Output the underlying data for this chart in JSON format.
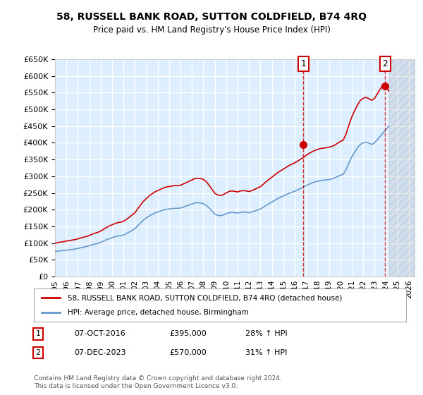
{
  "title": "58, RUSSELL BANK ROAD, SUTTON COLDFIELD, B74 4RQ",
  "subtitle": "Price paid vs. HM Land Registry's House Price Index (HPI)",
  "ylabel": "",
  "ylim": [
    0,
    650000
  ],
  "yticks": [
    0,
    50000,
    100000,
    150000,
    200000,
    250000,
    300000,
    350000,
    400000,
    450000,
    500000,
    550000,
    600000,
    650000
  ],
  "xlim_start": 1995.0,
  "xlim_end": 2026.5,
  "sale1_x": 2016.77,
  "sale1_y": 395000,
  "sale1_label": "1",
  "sale2_x": 2023.92,
  "sale2_y": 570000,
  "sale2_label": "2",
  "red_line_color": "#cc0000",
  "blue_line_color": "#6699cc",
  "background_color": "#ddeeff",
  "plot_bg_color": "#ddeeff",
  "grid_color": "#ffffff",
  "legend_label_red": "58, RUSSELL BANK ROAD, SUTTON COLDFIELD, B74 4RQ (detached house)",
  "legend_label_blue": "HPI: Average price, detached house, Birmingham",
  "annotation1_date": "07-OCT-2016",
  "annotation1_price": "£395,000",
  "annotation1_hpi": "28% ↑ HPI",
  "annotation2_date": "07-DEC-2023",
  "annotation2_price": "£570,000",
  "annotation2_hpi": "31% ↑ HPI",
  "footer": "Contains HM Land Registry data © Crown copyright and database right 2024.\nThis data is licensed under the Open Government Licence v3.0.",
  "hpi_years": [
    1995.0,
    1995.25,
    1995.5,
    1995.75,
    1996.0,
    1996.25,
    1996.5,
    1996.75,
    1997.0,
    1997.25,
    1997.5,
    1997.75,
    1998.0,
    1998.25,
    1998.5,
    1998.75,
    1999.0,
    1999.25,
    1999.5,
    1999.75,
    2000.0,
    2000.25,
    2000.5,
    2000.75,
    2001.0,
    2001.25,
    2001.5,
    2001.75,
    2002.0,
    2002.25,
    2002.5,
    2002.75,
    2003.0,
    2003.25,
    2003.5,
    2003.75,
    2004.0,
    2004.25,
    2004.5,
    2004.75,
    2005.0,
    2005.25,
    2005.5,
    2005.75,
    2006.0,
    2006.25,
    2006.5,
    2006.75,
    2007.0,
    2007.25,
    2007.5,
    2007.75,
    2008.0,
    2008.25,
    2008.5,
    2008.75,
    2009.0,
    2009.25,
    2009.5,
    2009.75,
    2010.0,
    2010.25,
    2010.5,
    2010.75,
    2011.0,
    2011.25,
    2011.5,
    2011.75,
    2012.0,
    2012.25,
    2012.5,
    2012.75,
    2013.0,
    2013.25,
    2013.5,
    2013.75,
    2014.0,
    2014.25,
    2014.5,
    2014.75,
    2015.0,
    2015.25,
    2015.5,
    2015.75,
    2016.0,
    2016.25,
    2016.5,
    2016.75,
    2017.0,
    2017.25,
    2017.5,
    2017.75,
    2018.0,
    2018.25,
    2018.5,
    2018.75,
    2019.0,
    2019.25,
    2019.5,
    2019.75,
    2020.0,
    2020.25,
    2020.5,
    2020.75,
    2021.0,
    2021.25,
    2021.5,
    2021.75,
    2022.0,
    2022.25,
    2022.5,
    2022.75,
    2023.0,
    2023.25,
    2023.5,
    2023.75,
    2024.0,
    2024.25
  ],
  "hpi_blue": [
    75000,
    76000,
    77000,
    78000,
    79000,
    80000,
    81000,
    82000,
    84000,
    86000,
    88000,
    90000,
    92000,
    95000,
    97000,
    99000,
    102000,
    106000,
    110000,
    113000,
    116000,
    119000,
    121000,
    122000,
    124000,
    128000,
    133000,
    138000,
    143000,
    152000,
    161000,
    169000,
    175000,
    181000,
    186000,
    190000,
    193000,
    196000,
    199000,
    201000,
    202000,
    203000,
    204000,
    204000,
    205000,
    208000,
    211000,
    214000,
    217000,
    220000,
    221000,
    220000,
    218000,
    213000,
    205000,
    196000,
    187000,
    183000,
    182000,
    184000,
    188000,
    191000,
    192000,
    191000,
    190000,
    192000,
    193000,
    192000,
    191000,
    193000,
    196000,
    199000,
    202000,
    207000,
    213000,
    218000,
    223000,
    228000,
    233000,
    237000,
    241000,
    245000,
    249000,
    252000,
    255000,
    259000,
    263000,
    267000,
    272000,
    276000,
    280000,
    283000,
    285000,
    287000,
    288000,
    289000,
    290000,
    292000,
    295000,
    299000,
    303000,
    306000,
    320000,
    340000,
    358000,
    372000,
    385000,
    395000,
    400000,
    402000,
    399000,
    395000,
    400000,
    410000,
    420000,
    430000,
    440000,
    450000
  ],
  "hpi_red": [
    100000,
    101500,
    103000,
    104500,
    106000,
    107500,
    109000,
    110500,
    112500,
    115000,
    117500,
    120000,
    122500,
    126500,
    129500,
    132000,
    136000,
    141000,
    146500,
    151000,
    154500,
    158500,
    161000,
    162500,
    165000,
    170500,
    177000,
    184000,
    190500,
    202500,
    214500,
    225000,
    233000,
    241000,
    247500,
    253000,
    257000,
    261000,
    265000,
    268000,
    269000,
    270500,
    272000,
    272000,
    273000,
    277000,
    281000,
    285000,
    289000,
    293000,
    294000,
    293000,
    290500,
    284000,
    273000,
    261000,
    249000,
    244000,
    242500,
    245000,
    250000,
    254500,
    256000,
    254500,
    253000,
    256000,
    257000,
    256000,
    254500,
    257000,
    261000,
    265000,
    269000,
    276000,
    284000,
    290500,
    297000,
    304000,
    310500,
    316000,
    321000,
    326500,
    332000,
    336000,
    340000,
    345000,
    350500,
    356000,
    362500,
    368000,
    373000,
    377000,
    380000,
    383000,
    384000,
    385000,
    387000,
    389000,
    393000,
    398500,
    404000,
    408000,
    426500,
    453000,
    477000,
    496000,
    513000,
    527000,
    533000,
    536000,
    532000,
    527000,
    533000,
    547000,
    561000,
    575000,
    565000,
    555000
  ],
  "xtick_years": [
    1995,
    1996,
    1997,
    1998,
    1999,
    2000,
    2001,
    2002,
    2003,
    2004,
    2005,
    2006,
    2007,
    2008,
    2009,
    2010,
    2011,
    2012,
    2013,
    2014,
    2015,
    2016,
    2017,
    2018,
    2019,
    2020,
    2021,
    2022,
    2023,
    2024,
    2025,
    2026
  ]
}
